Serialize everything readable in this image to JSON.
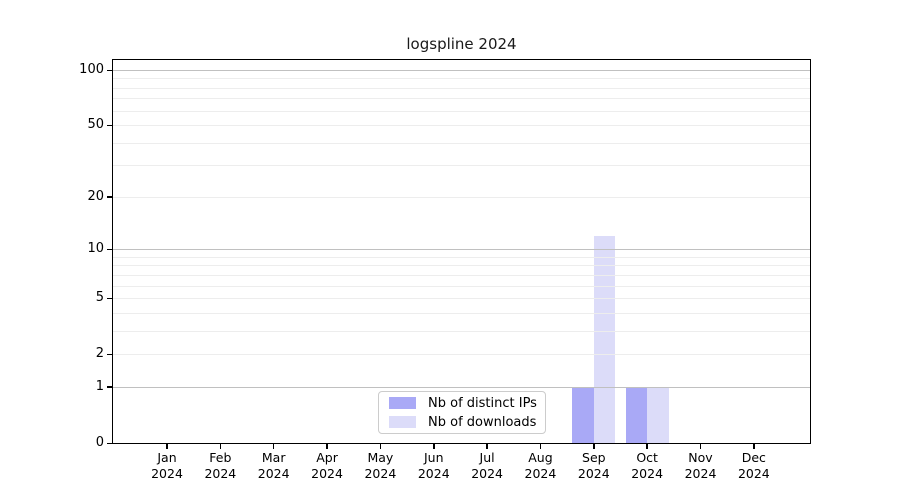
{
  "chart_data": {
    "type": "bar",
    "title": "logspline 2024",
    "x_categories": [
      "Jan",
      "Feb",
      "Mar",
      "Apr",
      "May",
      "Jun",
      "Jul",
      "Aug",
      "Sep",
      "Oct",
      "Nov",
      "Dec"
    ],
    "x_sub_label": "2024",
    "series": [
      {
        "name": "Nb of distinct IPs",
        "color": "#a9a9f6",
        "values": [
          0,
          0,
          0,
          0,
          0,
          0,
          0,
          0,
          1,
          1,
          0,
          0
        ]
      },
      {
        "name": "Nb of downloads",
        "color": "#dcdcf9",
        "values": [
          0,
          0,
          0,
          0,
          0,
          0,
          0,
          0,
          12,
          1,
          0,
          0
        ]
      }
    ],
    "y_axis": {
      "scale": "log1p",
      "tick_labels": [
        100,
        50,
        20,
        10,
        5,
        2,
        1,
        0
      ],
      "major_gridlines": [
        1,
        10,
        100
      ],
      "minor_gridlines": [
        2,
        3,
        4,
        5,
        6,
        7,
        8,
        9,
        20,
        30,
        40,
        50,
        60,
        70,
        80,
        90
      ],
      "top_value": 100
    },
    "legend": {
      "position": "bottom-center"
    },
    "colors": {
      "background": "#ffffff",
      "axis": "#000000",
      "text": "#000000",
      "major_grid": "#c0c0c0",
      "minor_grid": "#ededed",
      "legend_border": "#cccccc"
    }
  }
}
